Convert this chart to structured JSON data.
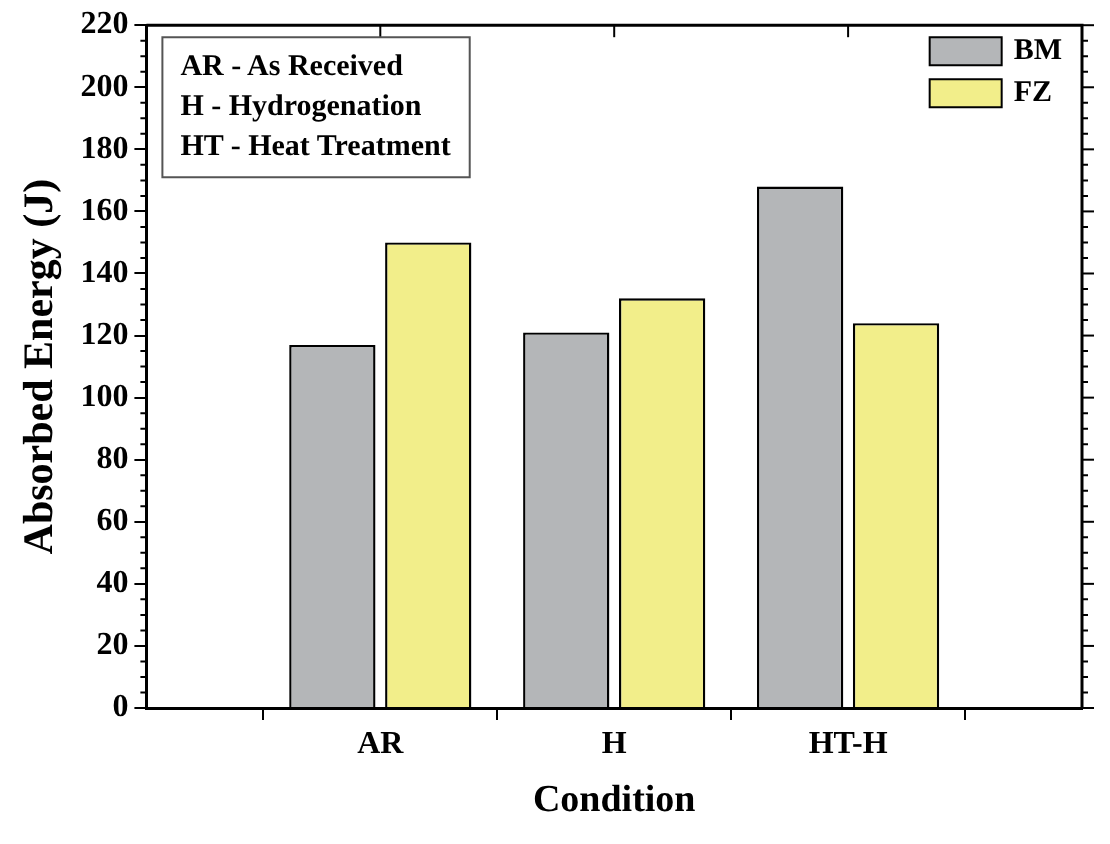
{
  "chart_data": {
    "type": "bar",
    "categories": [
      "AR",
      "H",
      "HT-H"
    ],
    "series": [
      {
        "name": "BM",
        "color": "#b4b6b8",
        "values": [
          117,
          121,
          168
        ]
      },
      {
        "name": "FZ",
        "color": "#f2ee8a",
        "values": [
          150,
          132,
          124
        ]
      }
    ],
    "xlabel": "Condition",
    "ylabel": "Absorbed Energy (J)",
    "ylim": [
      0,
      220
    ],
    "yticks": [
      0,
      20,
      40,
      60,
      80,
      100,
      120,
      140,
      160,
      180,
      200,
      220
    ],
    "annotations": [
      "AR - As Received",
      "H - Hydrogenation",
      "HT - Heat Treatment"
    ],
    "legend": "top right",
    "grid": false
  }
}
